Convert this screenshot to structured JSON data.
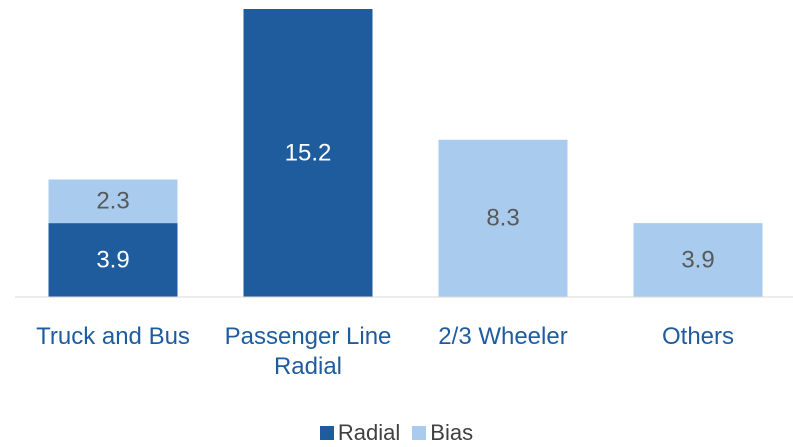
{
  "chart_data": {
    "type": "stacked_bar",
    "categories": [
      "Truck and Bus",
      "Passenger Line Radial",
      "2/3 Wheeler",
      "Others"
    ],
    "series": [
      {
        "name": "Radial",
        "color": "#1f5c9e",
        "values": [
          3.9,
          15.2,
          null,
          null
        ]
      },
      {
        "name": "Bias",
        "color": "#a9cbee",
        "values": [
          2.3,
          null,
          8.3,
          3.9
        ]
      }
    ],
    "legend": "bottom"
  }
}
